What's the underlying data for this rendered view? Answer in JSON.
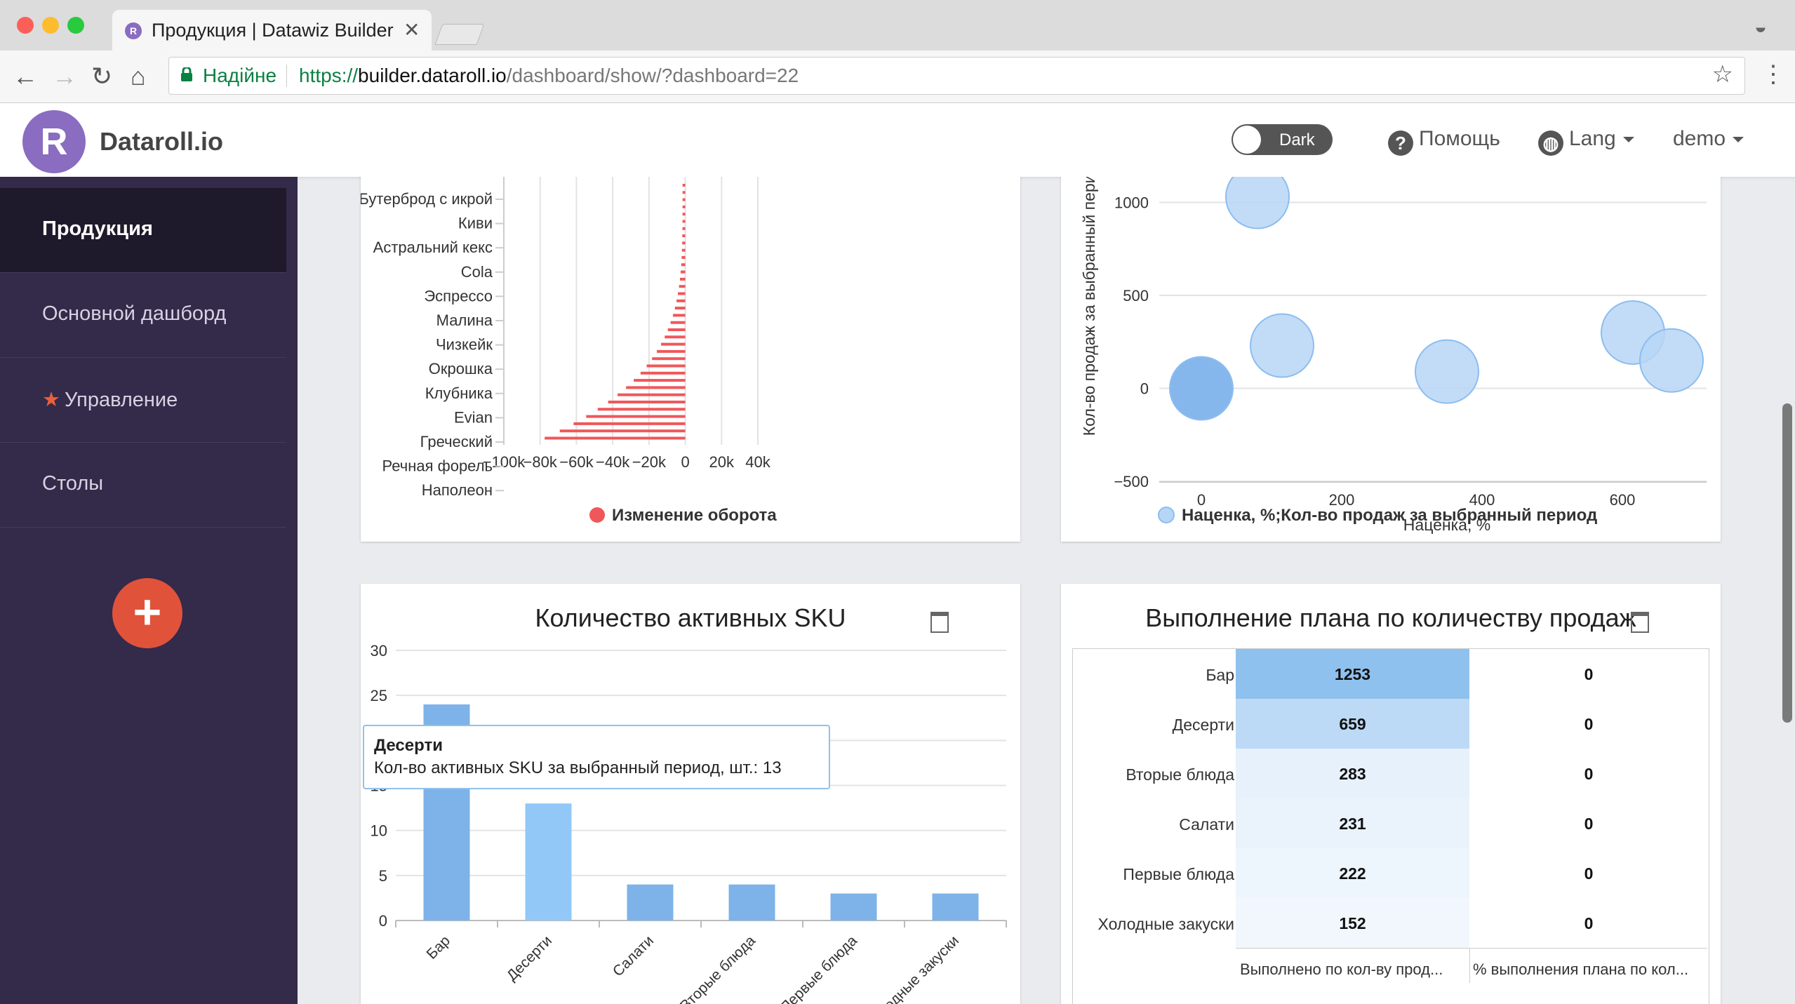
{
  "browser": {
    "tab_title": "Продукция | Datawiz Builder",
    "tab_favicon": "R",
    "secure_label": "Надійне",
    "url_scheme": "https://",
    "url_host": "builder.dataroll.io",
    "url_path": "/dashboard/show/?dashboard=22"
  },
  "header": {
    "logo_letter": "R",
    "brand": "Dataroll.io",
    "dark_toggle": "Dark",
    "help": "Помощь",
    "lang": "Lang",
    "user": "demo"
  },
  "sidebar": {
    "items": [
      {
        "label": "Продукция",
        "active": true
      },
      {
        "label": "Основной дашборд"
      },
      {
        "label": "Управление",
        "starred": true
      },
      {
        "label": "Столы"
      }
    ],
    "add_button": "+"
  },
  "panels": {
    "turnover": {
      "legend": "Изменение оборота",
      "legend_color": "#f0575a",
      "y_labels": [
        "Бутерброд с икрой",
        "Киви",
        "Астральний кекс",
        "Cola",
        "Эспрессо",
        "Малина",
        "Чизкейк",
        "Окрошка",
        "Клубника",
        "Evian",
        "Греческий",
        "Речная форель",
        "Наполеон"
      ],
      "x_ticks": [
        "−100k",
        "−80k",
        "−60k",
        "−40k",
        "−20k",
        "0",
        "20k",
        "40k"
      ]
    },
    "bubble": {
      "legend": "Наценка, %;Кол-во продаж за выбранный период",
      "legend_color": "#b7d6f6",
      "x_label": "Наценка, %",
      "y_label": "Кол-во продаж за выбранный период",
      "x_ticks": [
        "0",
        "200",
        "400",
        "600"
      ],
      "y_ticks": [
        "1000",
        "500",
        "0",
        "−500"
      ]
    },
    "sku": {
      "title": "Количество активных SKU",
      "tooltip_title": "Десерти",
      "tooltip_body": "Кол-во активных SKU за выбранный период, шт.: 13",
      "y_ticks": [
        "30",
        "25",
        "20",
        "15",
        "10",
        "5",
        "0"
      ],
      "x_labels": [
        "Бар",
        "Десерти",
        "Салати",
        "Вторые блюда",
        "Первые блюда",
        "Холодные закуски"
      ]
    },
    "plan": {
      "title": "Выполнение плана по количеству продаж",
      "rows": [
        {
          "label": "Бар",
          "done": "1253",
          "pct": "0"
        },
        {
          "label": "Десерти",
          "done": "659",
          "pct": "0"
        },
        {
          "label": "Вторые блюда",
          "done": "283",
          "pct": "0"
        },
        {
          "label": "Салати",
          "done": "231",
          "pct": "0"
        },
        {
          "label": "Первые блюда",
          "done": "222",
          "pct": "0"
        },
        {
          "label": "Холодные закуски",
          "done": "152",
          "pct": "0"
        }
      ],
      "col_done": "Выполнено по кол-ву прод...",
      "col_pct": "% выполнения плана по кол..."
    }
  },
  "chart_data": [
    {
      "type": "bar",
      "orientation": "horizontal",
      "categories": [
        "Бутерброд с икрой",
        "Киви",
        "Астральний кекс",
        "Cola",
        "Эспрессо",
        "Малина",
        "Чизкейк",
        "Окрошка",
        "Клубника",
        "Evian",
        "Греческий",
        "Речная форель",
        "Наполеон"
      ],
      "series": [
        {
          "name": "Изменение оборота",
          "values": [
            -2000,
            -3000,
            -4000,
            -5000,
            -6000,
            -7000,
            -8000,
            -9000,
            -10000,
            -12000,
            -16000,
            -40000,
            -77000
          ]
        }
      ],
      "xlim": [
        -100000,
        40000
      ],
      "grid": true,
      "legend": "bottom"
    },
    {
      "type": "scatter",
      "x": [
        0,
        80,
        115,
        350,
        615,
        670
      ],
      "y": [
        0,
        1030,
        230,
        90,
        300,
        150
      ],
      "xlabel": "Наценка, %",
      "ylabel": "Кол-во продаж за выбранный период",
      "series": [
        {
          "name": "Наценка, %;Кол-во продаж за выбранный период"
        }
      ],
      "xlim": [
        -50,
        720
      ],
      "ylim": [
        -500,
        1100
      ],
      "grid": true,
      "legend": "bottom"
    },
    {
      "type": "bar",
      "title": "Количество активных SKU",
      "categories": [
        "Бар",
        "Десерти",
        "Салати",
        "Вторые блюда",
        "Первые блюда",
        "Холодные закуски"
      ],
      "values": [
        24,
        13,
        4,
        4,
        3,
        3
      ],
      "ylim": [
        0,
        30
      ],
      "grid": true
    },
    {
      "type": "table",
      "title": "Выполнение плана по количеству продаж",
      "rows": [
        "Бар",
        "Десерти",
        "Вторые блюда",
        "Салати",
        "Первые блюда",
        "Холодные закуски"
      ],
      "columns": [
        "Выполнено по кол-ву прод...",
        "% выполнения плана по кол..."
      ],
      "values": [
        [
          1253,
          0
        ],
        [
          659,
          0
        ],
        [
          283,
          0
        ],
        [
          231,
          0
        ],
        [
          222,
          0
        ],
        [
          152,
          0
        ]
      ]
    }
  ]
}
